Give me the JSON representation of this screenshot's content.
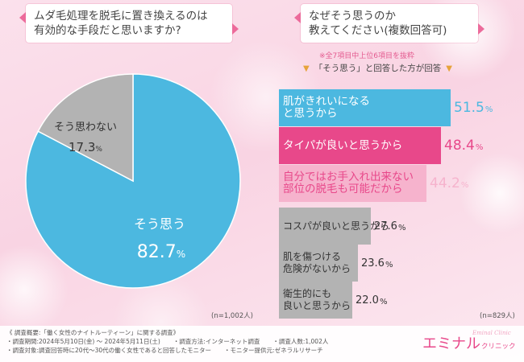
{
  "colors": {
    "blue": "#4cb8e0",
    "gray": "#b3b3b3",
    "pink": "#e8488a",
    "pink_light": "#f6b3cd",
    "text_pink": "#e45a8f",
    "text_dark": "#444444"
  },
  "question1": {
    "lines": [
      "ムダ毛処理を脱毛に置き換えるのは",
      "有効的な手段だと思いますか?"
    ]
  },
  "question2": {
    "lines": [
      "なぜそう思うのか",
      "教えてください(複数回答可)"
    ]
  },
  "notes": {
    "subset": "※全7項目中上位6項目を抜粋",
    "answered": "「そう思う」と回答した方が回答"
  },
  "n1": "(n=1,002人)",
  "n2": "(n=829人)",
  "chart_data": [
    {
      "type": "pie",
      "title": "ムダ毛処理を脱毛に置き換えるのは有効的な手段だと思いますか?",
      "unit": "%",
      "slices": [
        {
          "label": "そう思う",
          "value": 82.7,
          "value_int": "82.",
          "value_dec": "7"
        },
        {
          "label": "そう思わない",
          "value": 17.3,
          "value_int": "17.",
          "value_dec": "3"
        }
      ]
    },
    {
      "type": "bar",
      "title": "なぜそう思うのか教えてください(複数回答可)",
      "orientation": "horizontal",
      "unit": "%",
      "xlim": [
        0,
        70
      ],
      "bars": [
        {
          "lines": [
            "肌がきれいになる",
            "と思うから"
          ],
          "value": 51.5,
          "value_text": "51.5"
        },
        {
          "lines": [
            "タイパが良いと思うから"
          ],
          "value": 48.4,
          "value_text": "48.4"
        },
        {
          "lines": [
            "自分ではお手入れ出来ない",
            "部位の脱毛も可能だから"
          ],
          "value": 44.2,
          "value_text": "44.2"
        },
        {
          "lines": [
            "コスパが良いと思うから"
          ],
          "value": 27.6,
          "value_text": "27.6"
        },
        {
          "lines": [
            "肌を傷つける",
            "危険がないから"
          ],
          "value": 23.6,
          "value_text": "23.6"
        },
        {
          "lines": [
            "衛生的にも",
            "良いと思うから"
          ],
          "value": 22.0,
          "value_text": "22.0"
        }
      ]
    }
  ],
  "footer": {
    "title": "《 調査概要:「働く女性のナイトルーティーン」に関する調査》",
    "period": "・調査期間:2024年5月10日(金) ～ 2024年5月11日(土)",
    "method": "・調査方法:インターネット調査",
    "respondents": "・調査人数:1,002人",
    "target": "・調査対象:調査回答時に20代～30代の働く女性であると回答したモニター",
    "provider": "・モニター提供元:ゼネラルリサーチ"
  },
  "logo": {
    "main": "エミナル",
    "sub": "クリニック",
    "script": "Eminal Clinic"
  }
}
